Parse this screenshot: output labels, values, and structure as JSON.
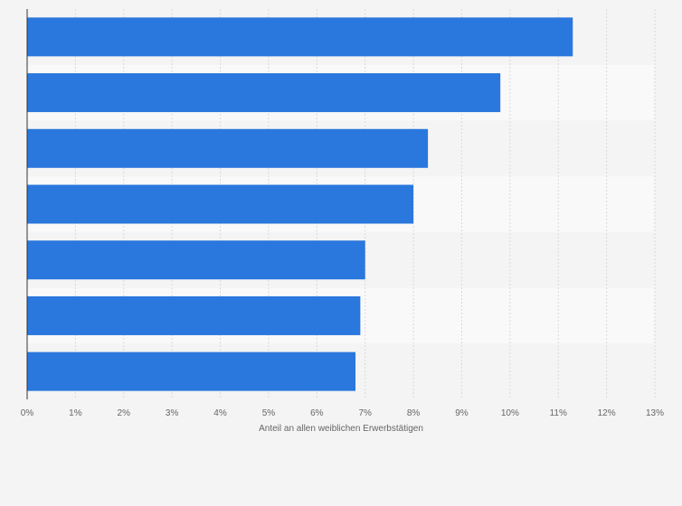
{
  "chart_data": {
    "type": "bar",
    "orientation": "horizontal",
    "categories": [
      "",
      "",
      "",
      "",
      "",
      "",
      ""
    ],
    "values": [
      11.3,
      9.8,
      8.3,
      8.0,
      7.0,
      6.9,
      6.8
    ],
    "xlabel": "Anteil an allen weiblichen Erwerbstätigen",
    "xlim": [
      0,
      13
    ],
    "x_ticks": [
      "0%",
      "1%",
      "2%",
      "3%",
      "4%",
      "5%",
      "6%",
      "7%",
      "8%",
      "9%",
      "10%",
      "11%",
      "12%",
      "13%"
    ],
    "grid": true,
    "bar_color": "#2a77dd",
    "band_colors": [
      "#f4f4f4",
      "#f9f9f9"
    ]
  }
}
